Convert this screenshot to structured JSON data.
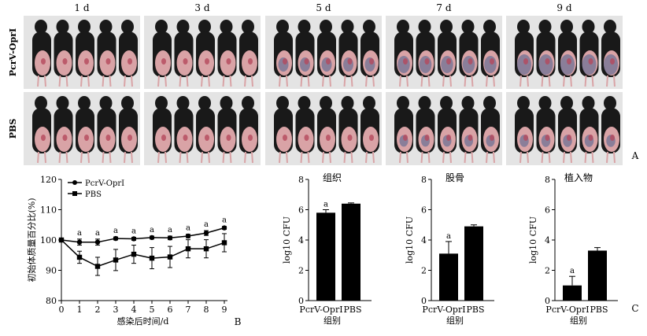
{
  "panel_a": {
    "columns": [
      "1 d",
      "3 d",
      "5 d",
      "7 d",
      "9 d"
    ],
    "rows": [
      "PcrV-OprI",
      "PBS"
    ],
    "label": "A",
    "colors": {
      "background": "#e4e4e4",
      "fur": "#191919",
      "skin": "#d9a3a6",
      "wound": "#b4485c",
      "bruise": "#6f7194"
    }
  },
  "panel_b": {
    "label": "B",
    "chart_data": {
      "type": "line",
      "x": [
        0,
        1,
        2,
        3,
        4,
        5,
        6,
        7,
        8,
        9
      ],
      "xlabel": "感染后时间/d",
      "ylabel": "初始体质量百分比(%)",
      "ylim": [
        80,
        120
      ],
      "yticks": [
        80,
        90,
        100,
        110,
        120
      ],
      "xticks": [
        0,
        1,
        2,
        3,
        4,
        5,
        6,
        7,
        8,
        9
      ],
      "legend_position": "top-left",
      "series": [
        {
          "name": "PcrV-OprI",
          "marker": "circle",
          "values": [
            100,
            99.3,
            99.3,
            100.5,
            100.4,
            100.8,
            100.7,
            101.3,
            102.3,
            104
          ],
          "errors": [
            0,
            1,
            1,
            0.5,
            0.5,
            0.5,
            0.6,
            0.6,
            0.8,
            0.5
          ]
        },
        {
          "name": "PBS",
          "marker": "square",
          "values": [
            100,
            94.3,
            91.3,
            93.4,
            95.3,
            94,
            94.4,
            97.1,
            97.1,
            99.1
          ],
          "errors": [
            0,
            2,
            3,
            3.5,
            3,
            3.5,
            3.5,
            3,
            3,
            3
          ]
        }
      ],
      "annotations": {
        "text": "a",
        "x": [
          1,
          2,
          3,
          4,
          5,
          6,
          7,
          8,
          9
        ]
      }
    }
  },
  "panel_c": {
    "label": "C",
    "charts": [
      {
        "title": "组织",
        "type": "bar",
        "categories": [
          "PcrV-OprI",
          "PBS"
        ],
        "values": [
          5.8,
          6.4
        ],
        "errors": [
          0.2,
          0.05
        ],
        "annotations": [
          "a",
          ""
        ],
        "ylabel": "log10 CFU",
        "xlabel": "组别",
        "ylim": [
          0,
          8
        ],
        "yticks": [
          0,
          2,
          4,
          6,
          8
        ]
      },
      {
        "title": "股骨",
        "type": "bar",
        "categories": [
          "PcrV-OprI",
          "PBS"
        ],
        "values": [
          3.1,
          4.9
        ],
        "errors": [
          0.8,
          0.1
        ],
        "annotations": [
          "a",
          ""
        ],
        "ylabel": "log10 CFU",
        "xlabel": "组别",
        "ylim": [
          0,
          8
        ],
        "yticks": [
          0,
          2,
          4,
          6,
          8
        ]
      },
      {
        "title": "植入物",
        "type": "bar",
        "categories": [
          "PcrV-OprI",
          "PBS"
        ],
        "values": [
          1,
          3.3
        ],
        "errors": [
          0.6,
          0.2
        ],
        "annotations": [
          "a",
          ""
        ],
        "ylabel": "log10 CFU",
        "xlabel": "组别",
        "ylim": [
          0,
          8
        ],
        "yticks": [
          0,
          2,
          4,
          6,
          8
        ]
      }
    ]
  }
}
